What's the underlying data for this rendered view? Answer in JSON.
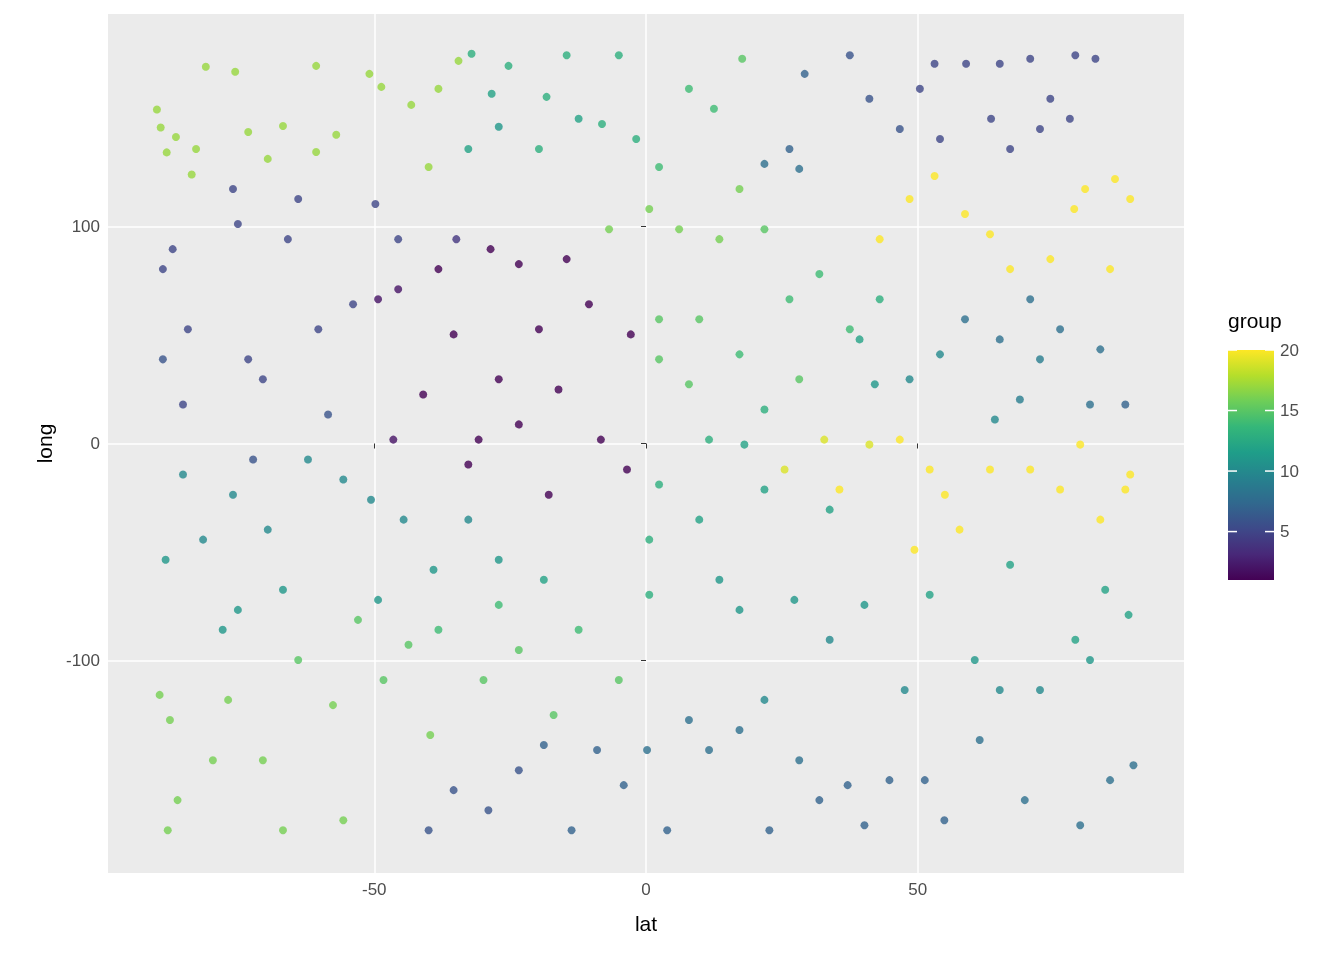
{
  "chart_data": {
    "type": "scatter",
    "xlabel": "lat",
    "ylabel": "long",
    "clabel": "group",
    "xlim": [
      -99,
      99
    ],
    "ylim": [
      -198,
      198
    ],
    "xticks": [
      -50,
      0,
      50
    ],
    "yticks": [
      -100,
      0,
      100
    ],
    "clim": [
      1,
      20
    ],
    "cticks": [
      5,
      10,
      15,
      20
    ],
    "grid": true,
    "marker": "circle",
    "x": [
      -90,
      -89.3,
      -88.2,
      -83.6,
      -81,
      -75.6,
      -73.2,
      -69.6,
      -66.8,
      -60.7,
      -60.7,
      -57,
      -50.9,
      -48.7,
      -43.2,
      -40,
      -38.2,
      -34.5,
      -86.5,
      -82.8,
      -32.1,
      -28.4,
      -25.3,
      -18.3,
      -14.6,
      -8.1,
      -5,
      -1.8,
      2.4,
      7.9,
      12.5,
      17.7,
      -32.7,
      -27.1,
      -19.7,
      -12.4,
      -6.8,
      0.6,
      6.1,
      13.5,
      17.2,
      21.8,
      21.8,
      26.4,
      29.2,
      37.5,
      41.1,
      46.7,
      50.4,
      53.1,
      58.9,
      63.5,
      65.1,
      70.7,
      74.4,
      79,
      82.7,
      78,
      72.5,
      67,
      54.1,
      28.2,
      43,
      48.5,
      53.1,
      58.7,
      63.3,
      67,
      74.4,
      78.8,
      80.8,
      86.3,
      89.1,
      85.4,
      46.7,
      52.2,
      55,
      57.7,
      63.3,
      70.7,
      76.2,
      79.9,
      83.6,
      88.2,
      49.4,
      35.6,
      32.8,
      41.1,
      25.5,
      89.1,
      -41,
      -38.2,
      -35.4,
      -32.7,
      -28.6,
      -23.4,
      -19.7,
      -14.6,
      -10.5,
      -8.3,
      -2.8,
      -3.5,
      -16.1,
      -23.4,
      -30.8,
      -27.1,
      -45.6,
      -49.3,
      -46.5,
      -17.9,
      -88.9,
      -87.1,
      -84.3,
      -85.2,
      -75.1,
      -76,
      -73.2,
      -70.5,
      -65.9,
      -64,
      -60.3,
      -53.9,
      -49.8,
      -45.6,
      -34.9,
      -72.3,
      -58.5,
      -88.9,
      -88.4,
      -85.2,
      -81.5,
      -76,
      -75.1,
      -69.6,
      -66.8,
      -62.2,
      -55.7,
      -50.6,
      -44.6,
      -39.1,
      -32.7,
      -27.1,
      -18.8,
      -49.3,
      -77.9,
      -89.5,
      -87.6,
      -88,
      -86.2,
      -79.7,
      -76.9,
      -70.5,
      -66.8,
      -64,
      -57.6,
      -55.7,
      -53,
      -48.3,
      -43.7,
      -39.7,
      -38.2,
      -29.9,
      -27.1,
      -23.4,
      -17,
      -12.4,
      -5,
      0.6,
      -40,
      -35.4,
      -29,
      -23.4,
      -18.8,
      -13.7,
      -9,
      -4.1,
      0.2,
      3.9,
      7.9,
      11.6,
      17.2,
      22.7,
      28.2,
      31.9,
      37.1,
      40.2,
      44.8,
      51.3,
      54.9,
      61.4,
      69.7,
      79.9,
      85.4,
      89.7,
      13.5,
      17.2,
      21.8,
      27.3,
      33.8,
      40.2,
      47.6,
      52.2,
      60.5,
      67,
      72.5,
      79,
      84.5,
      88.8,
      81.7,
      65.1,
      58.7,
      65.1,
      70.7,
      76.2,
      81.7,
      88.2,
      83.6,
      64.2,
      68.8,
      54.1,
      48.5,
      42.1,
      39.3,
      72.5,
      2.4,
      9.8,
      17.2,
      21.8,
      18.1,
      11.6,
      2.4,
      7.9,
      26.4,
      31.9,
      37.5,
      43,
      28.2,
      2.4,
      9.8,
      0.6,
      21.8,
      33.8
    ],
    "values": [
      154,
      145.7,
      134.2,
      124,
      173.7,
      171.4,
      143.6,
      131.2,
      146.4,
      134.4,
      174.1,
      142.3,
      170.4,
      164.4,
      156.1,
      127.5,
      163.5,
      176.4,
      141.3,
      135.8,
      179.7,
      161.2,
      174.1,
      159.8,
      179,
      147.3,
      179,
      140.4,
      127.5,
      163.5,
      154.3,
      177.4,
      135.8,
      146,
      135.8,
      149.7,
      98.8,
      108.1,
      98.8,
      94.2,
      117.3,
      98.8,
      128.9,
      135.8,
      170.4,
      179,
      158.9,
      145,
      163.5,
      175.1,
      175.1,
      149.7,
      175.1,
      177.4,
      158.9,
      179,
      177.4,
      149.7,
      145,
      135.8,
      140.4,
      126.6,
      94.2,
      112.7,
      123.3,
      105.8,
      96.5,
      80.4,
      85,
      108.1,
      117.3,
      121.9,
      112.7,
      80.4,
      1.8,
      -12,
      -23.6,
      -39.7,
      -12,
      -12,
      -21.2,
      -0.5,
      -35.1,
      -21.2,
      -49,
      -21.2,
      1.8,
      -0.5,
      -12,
      -14.3,
      22.6,
      80.4,
      50.3,
      -9.7,
      89.6,
      82.7,
      52.7,
      85,
      64.2,
      1.8,
      50.3,
      -12,
      24.9,
      8.8,
      1.8,
      29.6,
      71.1,
      66.5,
      1.8,
      -23.6,
      80.4,
      89.6,
      52.7,
      18,
      101.2,
      117.3,
      38.8,
      29.6,
      94.2,
      112.7,
      52.7,
      64.2,
      110.4,
      94.2,
      94.2,
      -7.4,
      13.4,
      38.8,
      -53.6,
      -14.3,
      -44.3,
      -23.6,
      -76.7,
      -39.7,
      -67.4,
      -7.4,
      -16.6,
      -25.9,
      -35.1,
      -58.2,
      -35.1,
      -53.6,
      -62.8,
      -72.1,
      -85.9,
      -115.9,
      -127.5,
      -178.3,
      -164.4,
      -146,
      -118.2,
      -146,
      -178.3,
      -99.8,
      -120.6,
      -173.7,
      -81.3,
      -109,
      -92.8,
      -134.4,
      -85.9,
      -109,
      -74.4,
      -95.2,
      -125.2,
      -85.9,
      -109,
      -69.7,
      -178.3,
      -159.8,
      -169.1,
      -150.6,
      -139,
      -178.3,
      -141.3,
      -157.5,
      -141.3,
      -178.3,
      -127.5,
      -141.3,
      -132.1,
      -178.3,
      -146,
      -164.4,
      -157.5,
      -176,
      -155.2,
      -155.2,
      -173.7,
      -136.7,
      -164.4,
      -176,
      -155.2,
      -148.3,
      -62.8,
      -76.7,
      -118.2,
      -72.1,
      -90.5,
      -74.4,
      -113.6,
      -69.7,
      -99.8,
      -55.9,
      -113.6,
      -90.5,
      -67.4,
      -79,
      -99.8,
      -113.6,
      57.3,
      48,
      66.5,
      52.7,
      18,
      18,
      43.4,
      11.1,
      20.3,
      41.1,
      29.6,
      27.3,
      48,
      38.8,
      57.3,
      57.3,
      41.1,
      15.7,
      -0.5,
      1.8,
      38.8,
      27.3,
      66.5,
      78.1,
      52.7,
      66.5,
      29.6,
      -18.9,
      -35.1,
      -44.3,
      -21.2,
      -30.5
    ],
    "cvalues": [
      17,
      17,
      17,
      17,
      17,
      17,
      17,
      17,
      17,
      17,
      17,
      17,
      17,
      17,
      17,
      17,
      17,
      17,
      17,
      17,
      13,
      12,
      13,
      13,
      13,
      13,
      13,
      13,
      14,
      14,
      14,
      15,
      12,
      11,
      13,
      12,
      16,
      16,
      16,
      16,
      16,
      15,
      8,
      7,
      7,
      6,
      6,
      6,
      5,
      5,
      5,
      5,
      5,
      5,
      5,
      5,
      5,
      5,
      5,
      5,
      5,
      8,
      20,
      20,
      20,
      20,
      20,
      20,
      20,
      20,
      20,
      20,
      20,
      20,
      20,
      20,
      20,
      20,
      20,
      20,
      20,
      20,
      20,
      20,
      20,
      20,
      19,
      19,
      19,
      20,
      1,
      1,
      1,
      1,
      1,
      1,
      1,
      1,
      1,
      1,
      1,
      1,
      1,
      1,
      1,
      1,
      2,
      2,
      2,
      1,
      5,
      5,
      5,
      5,
      5,
      5,
      5,
      5,
      5,
      5,
      5,
      5,
      5,
      5,
      4,
      6,
      6,
      6,
      11,
      10,
      10,
      10,
      11,
      10,
      11,
      10,
      10,
      10,
      10,
      11,
      10,
      11,
      12,
      11,
      11,
      16,
      16,
      16,
      16,
      16,
      16,
      16,
      16,
      15,
      16,
      16,
      15,
      15,
      15,
      16,
      14,
      15,
      14,
      15,
      15,
      14,
      15,
      13,
      6,
      6,
      6,
      6,
      7,
      7,
      7,
      7,
      8,
      7,
      8,
      8,
      8,
      7,
      8,
      7,
      7,
      7,
      7,
      7,
      7,
      8,
      8,
      8,
      8,
      8,
      11,
      11,
      10,
      11,
      10,
      11,
      10,
      12,
      11,
      12,
      10,
      12,
      12,
      12,
      11,
      10,
      8,
      8,
      8,
      8,
      8,
      7,
      8,
      10,
      9,
      10,
      10,
      11,
      12,
      9,
      15,
      15,
      14,
      13,
      12,
      13,
      15,
      15,
      14,
      14,
      14,
      13,
      15,
      13,
      12,
      13,
      12,
      12
    ]
  }
}
